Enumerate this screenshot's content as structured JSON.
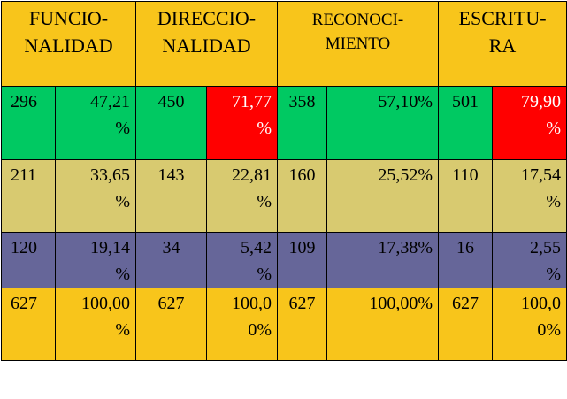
{
  "headers": [
    [
      "FUNCIO-",
      "NALIDAD"
    ],
    [
      "DIRECCIO-",
      "NALIDAD"
    ],
    [
      "RECONOCI-",
      "MIENTO"
    ],
    [
      "ESCRITU-",
      "RA"
    ]
  ],
  "rows": [
    {
      "cells": [
        [
          "296"
        ],
        [
          "47,21",
          "%"
        ],
        [
          "450"
        ],
        [
          "71,77",
          "%"
        ],
        [
          "358"
        ],
        [
          "57,10%"
        ],
        [
          "501"
        ],
        [
          "79,90",
          "%"
        ]
      ]
    },
    {
      "cells": [
        [
          "211"
        ],
        [
          "33,65",
          "%"
        ],
        [
          "143"
        ],
        [
          "22,81",
          "%"
        ],
        [
          "160"
        ],
        [
          "25,52%"
        ],
        [
          "110"
        ],
        [
          "17,54",
          "%"
        ]
      ]
    },
    {
      "cells": [
        [
          "120"
        ],
        [
          "19,14",
          "%"
        ],
        [
          "34"
        ],
        [
          "5,42",
          "%"
        ],
        [
          "109"
        ],
        [
          "17,38%"
        ],
        [
          "16"
        ],
        [
          "2,55",
          "%"
        ]
      ]
    },
    {
      "cells": [
        [
          "627"
        ],
        [
          "100,00",
          "%"
        ],
        [
          "627"
        ],
        [
          "100,0",
          "0%"
        ],
        [
          "627"
        ],
        [
          "100,00%"
        ],
        [
          "627"
        ],
        [
          "100,0",
          "0%"
        ]
      ]
    }
  ],
  "colors": {
    "header": "#f8c51b",
    "row_high": "#00c962",
    "row_high_alert": "#ff0000",
    "row_mid": "#d8ca70",
    "row_low": "#666699",
    "row_total": "#f8c51b"
  }
}
